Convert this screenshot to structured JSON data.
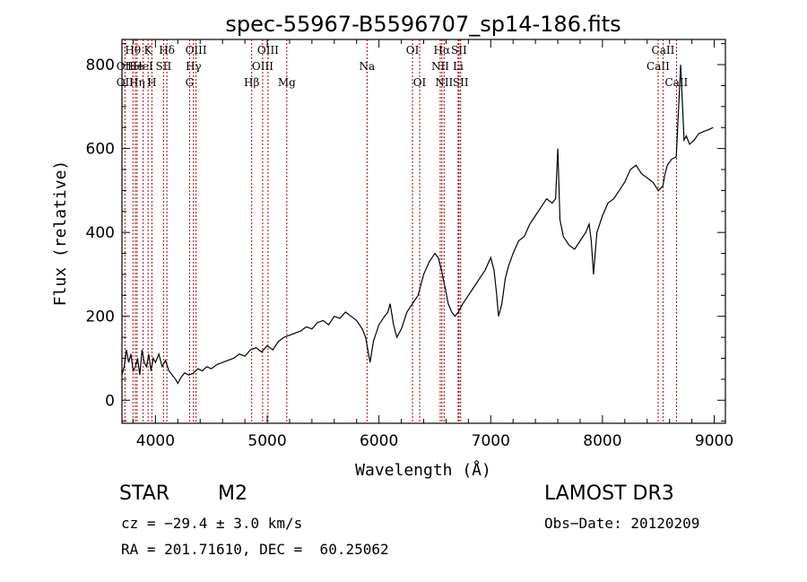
{
  "chart_data": {
    "type": "line",
    "title": "spec-55967-B5596707_sp14-186.fits",
    "xlabel": "Wavelength (Å)",
    "ylabel": "Flux (relative)",
    "xlim": [
      3700,
      9100
    ],
    "ylim": [
      -55,
      860
    ],
    "xticks": [
      4000,
      5000,
      6000,
      7000,
      8000,
      9000
    ],
    "yticks": [
      0,
      200,
      400,
      600,
      800
    ],
    "grid": false,
    "series": [
      {
        "name": "flux",
        "x": [
          3700,
          3720,
          3740,
          3760,
          3780,
          3800,
          3820,
          3840,
          3860,
          3880,
          3900,
          3920,
          3940,
          3960,
          3980,
          4000,
          4030,
          4060,
          4090,
          4120,
          4150,
          4180,
          4200,
          4230,
          4260,
          4300,
          4340,
          4380,
          4420,
          4460,
          4500,
          4550,
          4600,
          4650,
          4700,
          4750,
          4800,
          4850,
          4900,
          4950,
          5000,
          5050,
          5100,
          5150,
          5200,
          5250,
          5300,
          5350,
          5400,
          5450,
          5500,
          5550,
          5600,
          5650,
          5700,
          5750,
          5800,
          5850,
          5880,
          5900,
          5920,
          5950,
          6000,
          6050,
          6080,
          6100,
          6130,
          6160,
          6200,
          6250,
          6300,
          6350,
          6400,
          6450,
          6500,
          6530,
          6560,
          6590,
          6620,
          6650,
          6680,
          6710,
          6750,
          6800,
          6850,
          6900,
          6950,
          7000,
          7030,
          7050,
          7070,
          7100,
          7130,
          7160,
          7200,
          7250,
          7300,
          7350,
          7400,
          7450,
          7500,
          7550,
          7580,
          7600,
          7620,
          7650,
          7700,
          7750,
          7800,
          7850,
          7880,
          7900,
          7920,
          7950,
          8000,
          8050,
          8100,
          8150,
          8200,
          8250,
          8300,
          8350,
          8400,
          8450,
          8500,
          8540,
          8560,
          8580,
          8620,
          8660,
          8700,
          8730,
          8750,
          8780,
          8820,
          8860,
          8900,
          8950,
          8990
        ],
        "y": [
          60,
          80,
          120,
          90,
          110,
          70,
          80,
          100,
          60,
          120,
          90,
          80,
          110,
          70,
          100,
          90,
          110,
          80,
          95,
          70,
          60,
          50,
          40,
          55,
          65,
          60,
          65,
          75,
          70,
          80,
          75,
          85,
          90,
          95,
          100,
          110,
          105,
          120,
          125,
          115,
          130,
          120,
          140,
          150,
          155,
          160,
          165,
          175,
          170,
          185,
          190,
          180,
          200,
          195,
          210,
          200,
          190,
          170,
          150,
          120,
          90,
          140,
          180,
          200,
          210,
          230,
          180,
          150,
          170,
          210,
          230,
          250,
          300,
          330,
          350,
          340,
          310,
          270,
          230,
          210,
          200,
          210,
          230,
          250,
          270,
          290,
          310,
          340,
          310,
          260,
          200,
          230,
          290,
          320,
          350,
          380,
          390,
          420,
          440,
          460,
          480,
          470,
          480,
          600,
          430,
          390,
          370,
          360,
          380,
          400,
          420,
          380,
          300,
          400,
          440,
          470,
          480,
          500,
          520,
          550,
          560,
          540,
          530,
          520,
          500,
          510,
          540,
          560,
          575,
          580,
          800,
          620,
          630,
          610,
          620,
          635,
          640,
          645,
          650
        ]
      }
    ],
    "line_markers": [
      {
        "name": "OII",
        "x": 3727,
        "label_row": 1
      },
      {
        "name": "OII",
        "x": 3727,
        "label_row": 2
      },
      {
        "name": "Hθ",
        "x": 3798,
        "label_row": 0
      },
      {
        "name": "He",
        "x": 3820,
        "label_row": 1
      },
      {
        "name": "Hη",
        "x": 3835,
        "label_row": 2
      },
      {
        "name": "K",
        "x": 3934,
        "label_row": 0
      },
      {
        "name": "H",
        "x": 3968,
        "label_row": 2
      },
      {
        "name": "HeI",
        "x": 3889,
        "label_row": 1
      },
      {
        "name": "SII",
        "x": 4072,
        "label_row": 1
      },
      {
        "name": "Hδ",
        "x": 4102,
        "label_row": 0
      },
      {
        "name": "OIII",
        "x": 4363,
        "label_row": 0
      },
      {
        "name": "Hγ",
        "x": 4340,
        "label_row": 1
      },
      {
        "name": "G",
        "x": 4305,
        "label_row": 2
      },
      {
        "name": "Hβ",
        "x": 4861,
        "label_row": 2
      },
      {
        "name": "OIII",
        "x": 4959,
        "label_row": 1
      },
      {
        "name": "OIII",
        "x": 5007,
        "label_row": 0
      },
      {
        "name": "Mg",
        "x": 5175,
        "label_row": 2
      },
      {
        "name": "Na",
        "x": 5893,
        "label_row": 1
      },
      {
        "name": "OI",
        "x": 6300,
        "label_row": 0
      },
      {
        "name": "OI",
        "x": 6364,
        "label_row": 2
      },
      {
        "name": "NII",
        "x": 6548,
        "label_row": 1
      },
      {
        "name": "Hα",
        "x": 6563,
        "label_row": 0
      },
      {
        "name": "NII",
        "x": 6583,
        "label_row": 2
      },
      {
        "name": "Li",
        "x": 6708,
        "label_row": 1
      },
      {
        "name": "SII",
        "x": 6716,
        "label_row": 0
      },
      {
        "name": "SII",
        "x": 6731,
        "label_row": 2
      },
      {
        "name": "CaII",
        "x": 8498,
        "label_row": 1
      },
      {
        "name": "CaII",
        "x": 8542,
        "label_row": 0
      },
      {
        "name": "CaII",
        "x": 8662,
        "label_row": 2
      }
    ],
    "marker_color": "#aa0000"
  },
  "info": {
    "class_label": "STAR",
    "subclass_label": "M2",
    "cz_text": "cz = −29.4 ± 3.0 km/s",
    "coords_text": "RA = 201.71610, DEC =  60.25062",
    "survey": "LAMOST DR3",
    "obs_date": "Obs−Date: 20120209"
  }
}
